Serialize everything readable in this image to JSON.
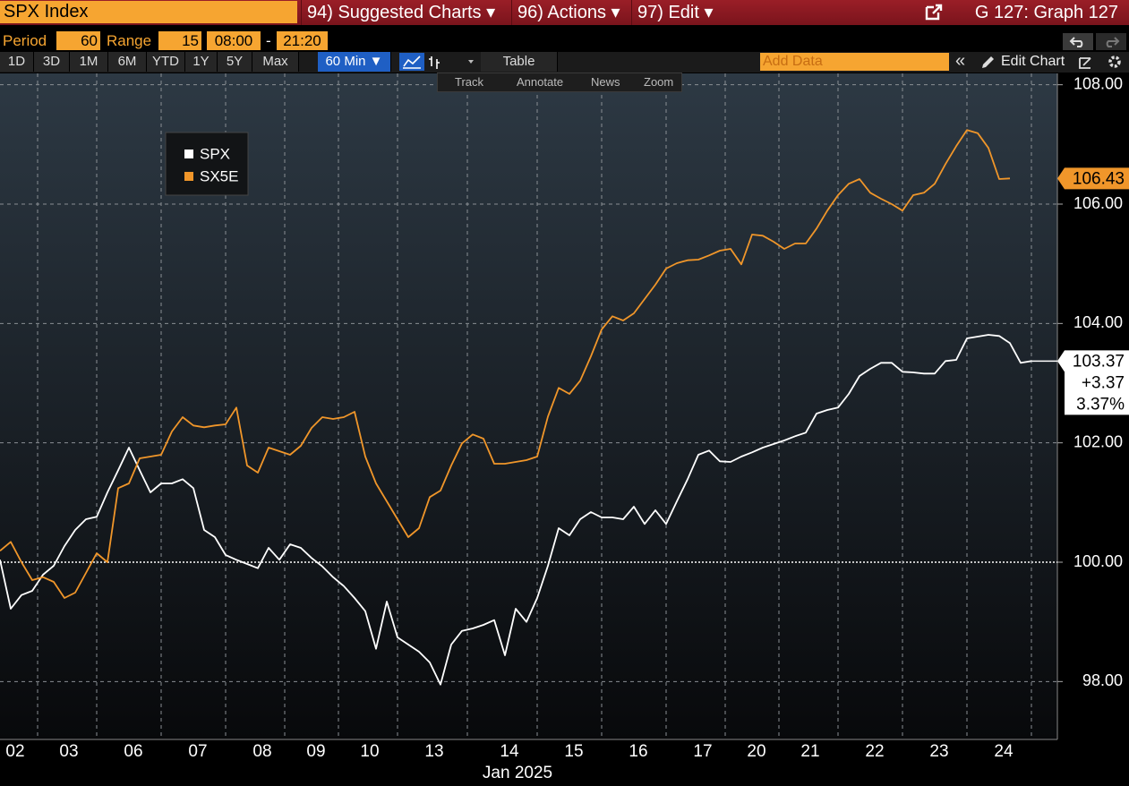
{
  "window": {
    "security": "SPX Index",
    "menus": [
      "94) Suggested Charts ▾",
      "96) Actions ▾",
      "97) Edit ▾"
    ],
    "title": "G 127: Graph 127"
  },
  "settings": {
    "period_label": "Period",
    "period": 60,
    "range_label": "Range",
    "range": 15,
    "start": "08:00",
    "separator": "-",
    "end": "21:20"
  },
  "toolbar": {
    "ranges": [
      "1D",
      "3D",
      "1M",
      "6M",
      "YTD",
      "1Y",
      "5Y",
      "Max"
    ],
    "interval": "60 Min ▼",
    "table": "Table",
    "add_data": "Add Data",
    "collapse": "«",
    "edit_chart": "Edit Chart"
  },
  "chart_tools": [
    "Track",
    "Annotate",
    "News",
    "Zoom"
  ],
  "chart_data": {
    "type": "line",
    "x_label": "Jan 2025",
    "legend": "upper left",
    "grid": true,
    "reference_line": 100,
    "categories": [
      null,
      "02",
      null,
      null,
      null,
      null,
      "03",
      null,
      null,
      null,
      null,
      null,
      "06",
      null,
      null,
      null,
      null,
      null,
      "07",
      null,
      null,
      null,
      null,
      null,
      "08",
      null,
      null,
      null,
      null,
      "09",
      null,
      null,
      null,
      null,
      "10",
      null,
      null,
      null,
      null,
      null,
      "13",
      null,
      null,
      null,
      null,
      null,
      null,
      "14",
      null,
      null,
      null,
      null,
      null,
      "15",
      null,
      null,
      null,
      null,
      null,
      "16",
      null,
      null,
      null,
      null,
      null,
      "17",
      null,
      null,
      null,
      null,
      "20",
      null,
      null,
      null,
      null,
      "21",
      null,
      null,
      null,
      null,
      null,
      "22",
      null,
      null,
      null,
      null,
      null,
      "23",
      null,
      null,
      null,
      null,
      null,
      "24",
      null,
      null,
      null
    ],
    "series": [
      {
        "name": "SPX",
        "color": "#ffffff",
        "last_label": "103.37",
        "change": "+3.37",
        "change_pct": "3.37%",
        "values": [
          100.04,
          99.22,
          99.45,
          99.52,
          99.79,
          99.94,
          100.27,
          100.54,
          100.72,
          100.76,
          101.17,
          101.54,
          101.92,
          101.54,
          101.17,
          101.32,
          101.32,
          101.39,
          101.24,
          100.54,
          100.42,
          100.12,
          100.04,
          99.97,
          99.9,
          100.24,
          100.04,
          100.3,
          100.24,
          100.07,
          99.93,
          99.75,
          99.6,
          99.4,
          99.18,
          98.55,
          99.34,
          98.74,
          98.62,
          98.5,
          98.32,
          97.95,
          98.62,
          98.85,
          98.89,
          98.95,
          99.03,
          98.44,
          99.22,
          99.0,
          99.4,
          99.94,
          100.57,
          100.45,
          100.72,
          100.84,
          100.75,
          100.75,
          100.72,
          100.93,
          100.64,
          100.87,
          100.64,
          101.02,
          101.39,
          101.8,
          101.87,
          101.69,
          101.68,
          101.77,
          101.84,
          101.92,
          101.98,
          102.04,
          102.11,
          102.17,
          102.49,
          102.55,
          102.59,
          102.82,
          103.12,
          103.24,
          103.34,
          103.34,
          103.19,
          103.18,
          103.16,
          103.16,
          103.37,
          103.39,
          103.75,
          103.78,
          103.81,
          103.79,
          103.67,
          103.34,
          103.37
        ]
      },
      {
        "name": "SX5E",
        "color": "#f0962a",
        "last_label": "106.43",
        "values": [
          100.19,
          100.34,
          100.0,
          99.7,
          99.75,
          99.67,
          99.4,
          99.49,
          99.82,
          100.15,
          100.0,
          101.24,
          101.32,
          101.74,
          101.77,
          101.8,
          102.19,
          102.43,
          102.29,
          102.26,
          102.29,
          102.31,
          102.59,
          101.62,
          101.5,
          101.92,
          101.86,
          101.8,
          101.95,
          102.25,
          102.43,
          102.4,
          102.43,
          102.52,
          101.77,
          101.32,
          101.02,
          100.72,
          100.42,
          100.57,
          101.09,
          101.2,
          101.62,
          101.99,
          102.14,
          102.07,
          101.65,
          101.65,
          101.68,
          101.71,
          101.77,
          102.44,
          102.92,
          102.82,
          103.04,
          103.45,
          103.9,
          104.12,
          104.05,
          104.17,
          104.41,
          104.65,
          104.92,
          105.01,
          105.06,
          105.07,
          105.14,
          105.22,
          105.25,
          104.99,
          105.49,
          105.47,
          105.37,
          105.25,
          105.34,
          105.34,
          105.59,
          105.89,
          106.15,
          106.34,
          106.42,
          106.19,
          106.09,
          106.0,
          105.89,
          106.15,
          106.19,
          106.34,
          106.67,
          106.97,
          107.24,
          107.19,
          106.94,
          106.42,
          106.43,
          null,
          null
        ]
      }
    ],
    "ylim": [
      97.03,
      108.19
    ],
    "yticks": [
      {
        "value": 98,
        "label": "98.00"
      },
      {
        "value": 100,
        "label": "100.00"
      },
      {
        "value": 102,
        "label": "102.00"
      },
      {
        "value": 104,
        "label": "104.00"
      },
      {
        "value": 106,
        "label": "106.00"
      },
      {
        "value": 108,
        "label": "108.00"
      }
    ]
  }
}
